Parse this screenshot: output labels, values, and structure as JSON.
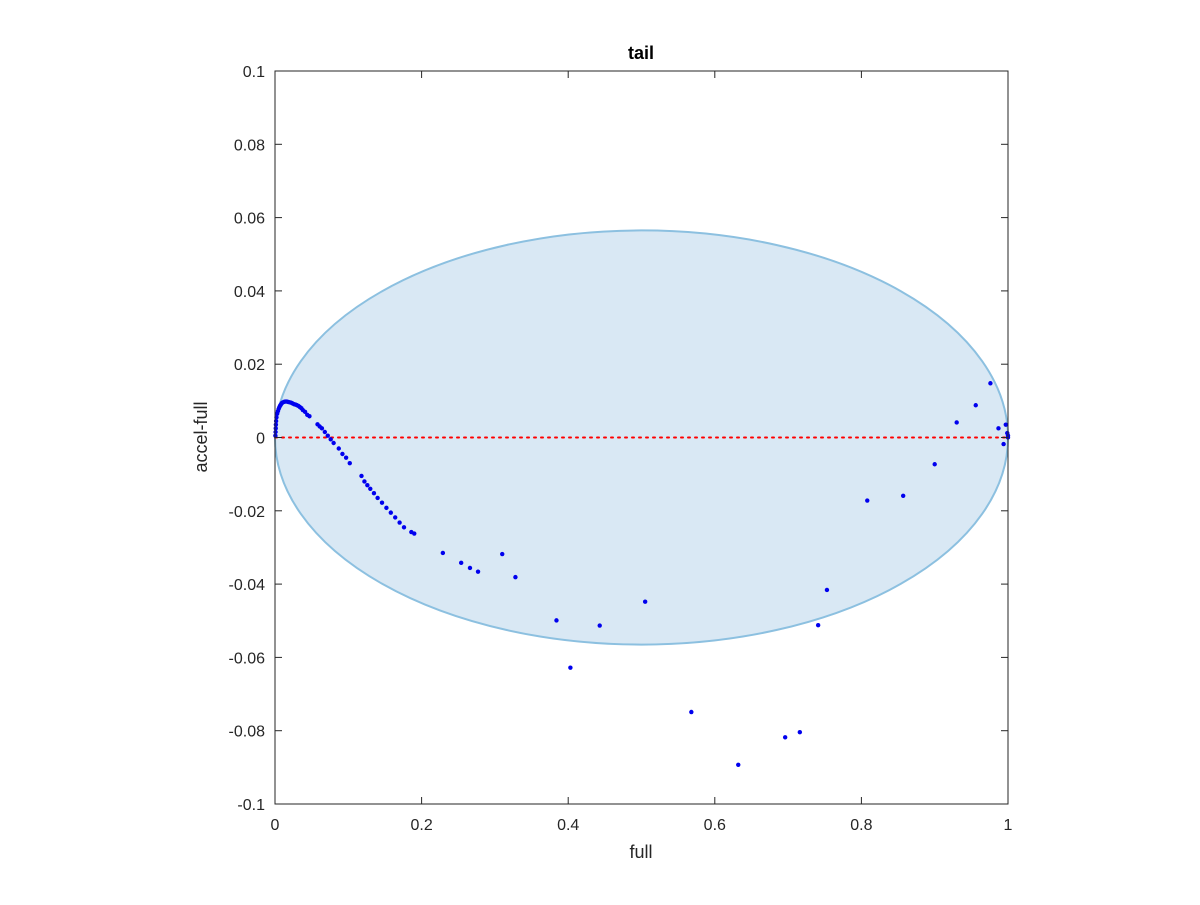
{
  "chart_data": {
    "type": "scatter",
    "title": "tail",
    "xlabel": "full",
    "ylabel": "accel-full",
    "xlim": [
      0,
      1
    ],
    "ylim": [
      -0.1,
      0.1
    ],
    "xticks": [
      0,
      0.2,
      0.4,
      0.6,
      0.8,
      1
    ],
    "xtick_labels": [
      "0",
      "0.2",
      "0.4",
      "0.6",
      "0.8",
      "1"
    ],
    "yticks": [
      -0.1,
      -0.08,
      -0.06,
      -0.04,
      -0.02,
      0,
      0.02,
      0.04,
      0.06,
      0.08,
      0.1
    ],
    "ytick_labels": [
      "-0.1",
      "-0.08",
      "-0.06",
      "-0.04",
      "-0.02",
      "0",
      "0.02",
      "0.04",
      "0.06",
      "0.08",
      "0.1"
    ],
    "grid": false,
    "ellipse": {
      "center": [
        0.5,
        0
      ],
      "radii": [
        0.5,
        0.0565
      ],
      "fill_color": "#d9e8f4",
      "edge_color": "#8cc0e0"
    },
    "reference_line": {
      "y": 0,
      "style": "dotted",
      "color": "#ff0000"
    },
    "points_color": "#0000ee",
    "points": [
      [
        0.0005,
        0.0005
      ],
      [
        0.0008,
        0.0015
      ],
      [
        0.001,
        0.0025
      ],
      [
        0.0012,
        0.0035
      ],
      [
        0.0015,
        0.0045
      ],
      [
        0.002,
        0.0055
      ],
      [
        0.003,
        0.0065
      ],
      [
        0.004,
        0.0072
      ],
      [
        0.005,
        0.0078
      ],
      [
        0.006,
        0.0083
      ],
      [
        0.007,
        0.0087
      ],
      [
        0.008,
        0.009
      ],
      [
        0.009,
        0.0093
      ],
      [
        0.01,
        0.0095
      ],
      [
        0.012,
        0.0097
      ],
      [
        0.014,
        0.0098
      ],
      [
        0.016,
        0.0098
      ],
      [
        0.018,
        0.0097
      ],
      [
        0.02,
        0.0096
      ],
      [
        0.022,
        0.0095
      ],
      [
        0.024,
        0.0093
      ],
      [
        0.026,
        0.0091
      ],
      [
        0.028,
        0.009
      ],
      [
        0.03,
        0.0088
      ],
      [
        0.032,
        0.0086
      ],
      [
        0.034,
        0.0083
      ],
      [
        0.036,
        0.008
      ],
      [
        0.038,
        0.0075
      ],
      [
        0.041,
        0.007
      ],
      [
        0.044,
        0.0062
      ],
      [
        0.047,
        0.0058
      ],
      [
        0.058,
        0.0036
      ],
      [
        0.061,
        0.003
      ],
      [
        0.064,
        0.0025
      ],
      [
        0.068,
        0.0015
      ],
      [
        0.072,
        0.0005
      ],
      [
        0.076,
        -0.0005
      ],
      [
        0.08,
        -0.0015
      ],
      [
        0.087,
        -0.003
      ],
      [
        0.092,
        -0.0045
      ],
      [
        0.097,
        -0.0055
      ],
      [
        0.102,
        -0.007
      ],
      [
        0.118,
        -0.0105
      ],
      [
        0.122,
        -0.012
      ],
      [
        0.126,
        -0.013
      ],
      [
        0.13,
        -0.014
      ],
      [
        0.135,
        -0.0152
      ],
      [
        0.14,
        -0.0165
      ],
      [
        0.146,
        -0.0178
      ],
      [
        0.152,
        -0.0192
      ],
      [
        0.158,
        -0.0205
      ],
      [
        0.164,
        -0.0218
      ],
      [
        0.17,
        -0.0232
      ],
      [
        0.176,
        -0.0245
      ],
      [
        0.186,
        -0.0258
      ],
      [
        0.19,
        -0.0262
      ],
      [
        0.229,
        -0.0315
      ],
      [
        0.254,
        -0.0342
      ],
      [
        0.266,
        -0.0356
      ],
      [
        0.277,
        -0.0366
      ],
      [
        0.31,
        -0.0318
      ],
      [
        0.328,
        -0.0381
      ],
      [
        0.384,
        -0.0499
      ],
      [
        0.403,
        -0.0628
      ],
      [
        0.443,
        -0.0513
      ],
      [
        0.505,
        -0.0448
      ],
      [
        0.568,
        -0.0749
      ],
      [
        0.632,
        -0.0893
      ],
      [
        0.696,
        -0.0818
      ],
      [
        0.716,
        -0.0804
      ],
      [
        0.741,
        -0.0512
      ],
      [
        0.753,
        -0.0416
      ],
      [
        0.808,
        -0.0172
      ],
      [
        0.857,
        -0.0159
      ],
      [
        0.9,
        -0.0073
      ],
      [
        0.93,
        0.0041
      ],
      [
        0.956,
        0.0088
      ],
      [
        0.976,
        0.0148
      ],
      [
        0.987,
        0.0025
      ],
      [
        0.994,
        -0.0018
      ],
      [
        0.997,
        0.0035
      ],
      [
        0.999,
        0.0012
      ],
      [
        1.0,
        0.0005
      ],
      [
        1.0,
        0.0
      ]
    ]
  }
}
